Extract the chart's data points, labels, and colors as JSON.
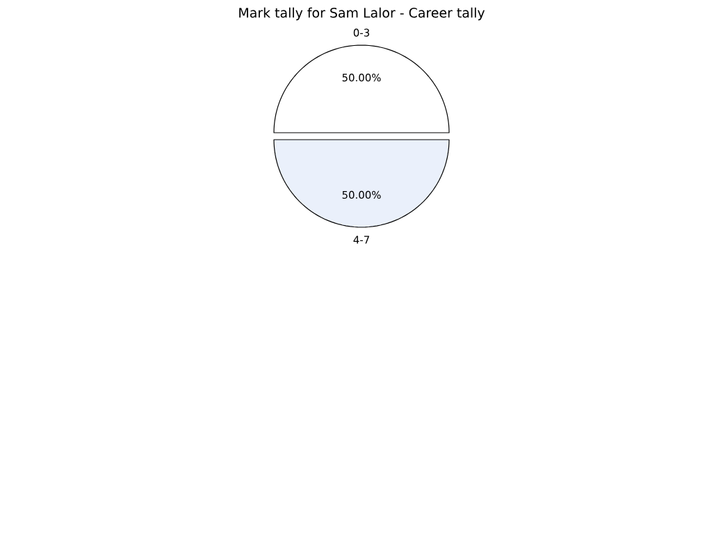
{
  "chart_data": {
    "type": "pie",
    "title": "Mark tally for Sam Lalor - Career tally",
    "categories": [
      "0-3",
      "4-7"
    ],
    "values": [
      50,
      50
    ],
    "value_labels": [
      "50.00%",
      "50.00%"
    ],
    "colors": [
      "#ffffff",
      "#eaf0fb"
    ]
  }
}
